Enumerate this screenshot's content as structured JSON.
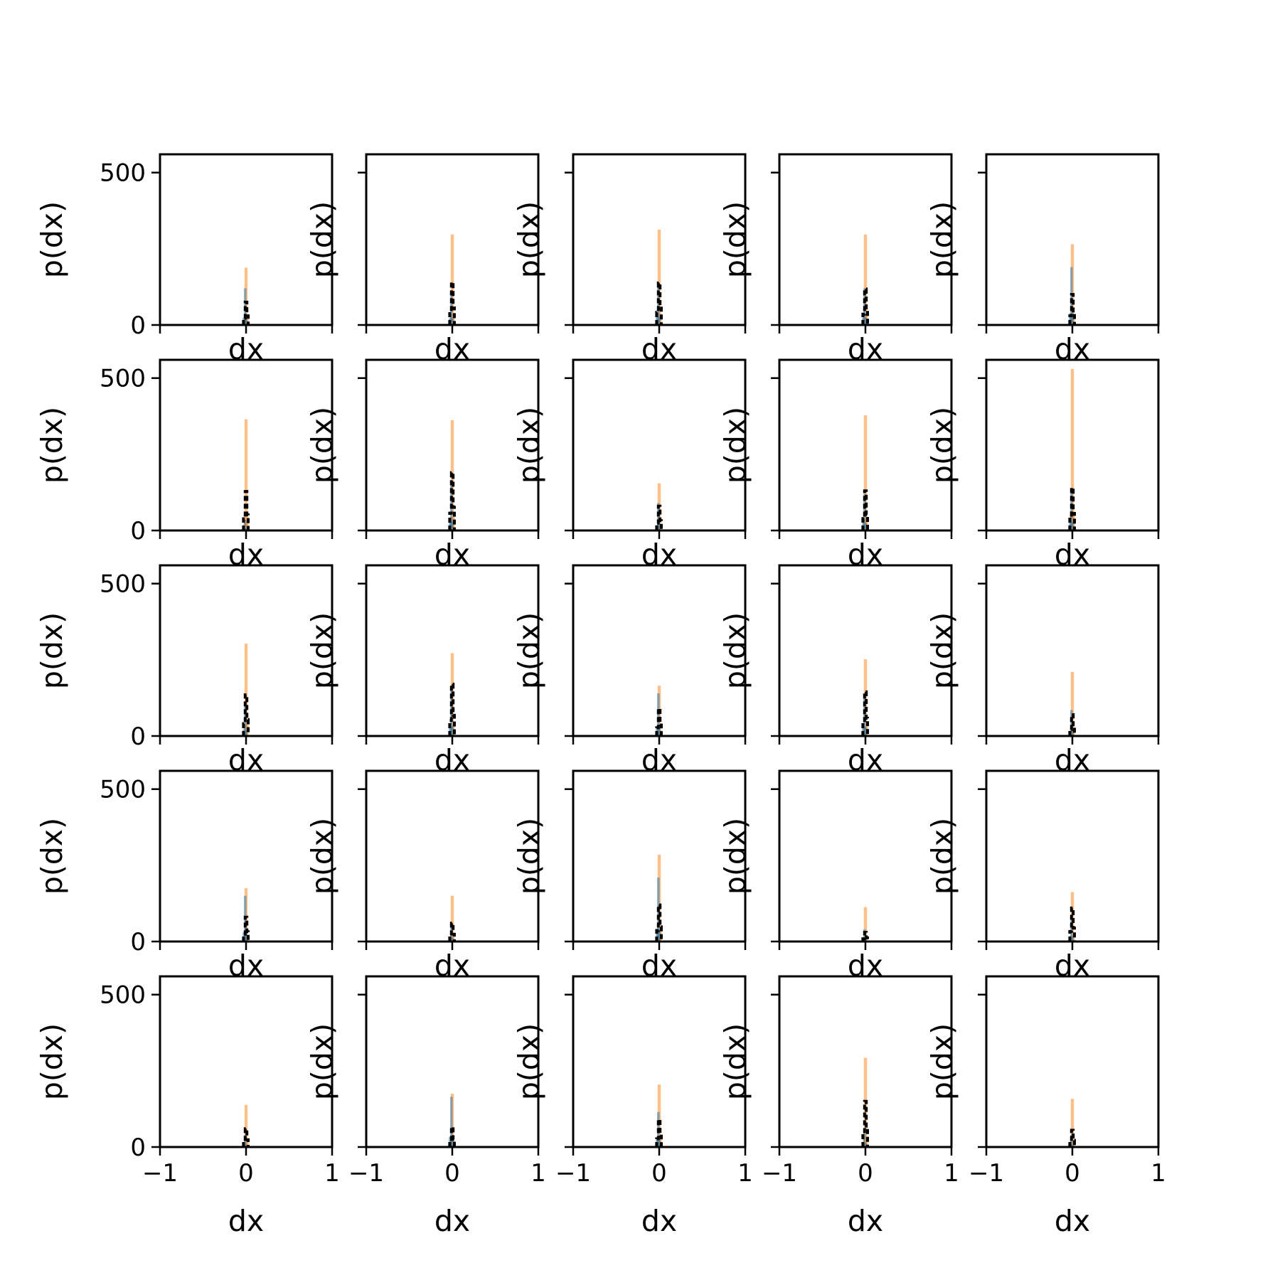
{
  "chart_data": {
    "type": "histogram-grid",
    "rows": 5,
    "cols": 5,
    "xlabel": "dx",
    "ylabel": "p(dx)",
    "xlim": [
      -1,
      1
    ],
    "ylim": [
      0,
      560
    ],
    "xticks": [
      -1,
      0,
      1
    ],
    "xtick_labels": [
      "−1",
      "0",
      "1"
    ],
    "yticks": [
      0,
      500
    ],
    "ytick_labels": [
      "0",
      "500"
    ],
    "colors": {
      "series_a": "#1f77b4",
      "series_b": "#ff7f0e",
      "overlay": "#000000",
      "frame": "#000000",
      "background": "#ffffff"
    },
    "panels": [
      {
        "row": 0,
        "col": 0,
        "peak_orange": 188,
        "peak_blue": 120,
        "peak_black": 75,
        "center": 0.0
      },
      {
        "row": 0,
        "col": 1,
        "peak_orange": 297,
        "peak_blue": 110,
        "peak_black": 140,
        "center": 0.0
      },
      {
        "row": 0,
        "col": 2,
        "peak_orange": 313,
        "peak_blue": 140,
        "peak_black": 138,
        "center": 0.0
      },
      {
        "row": 0,
        "col": 3,
        "peak_orange": 297,
        "peak_blue": 120,
        "peak_black": 118,
        "center": 0.0
      },
      {
        "row": 0,
        "col": 4,
        "peak_orange": 265,
        "peak_blue": 190,
        "peak_black": 100,
        "center": 0.0
      },
      {
        "row": 1,
        "col": 0,
        "peak_orange": 365,
        "peak_blue": 35,
        "peak_black": 128,
        "center": 0.0
      },
      {
        "row": 1,
        "col": 1,
        "peak_orange": 362,
        "peak_blue": 150,
        "peak_black": 190,
        "center": 0.0
      },
      {
        "row": 1,
        "col": 2,
        "peak_orange": 155,
        "peak_blue": 90,
        "peak_black": 80,
        "center": 0.0
      },
      {
        "row": 1,
        "col": 3,
        "peak_orange": 378,
        "peak_blue": 120,
        "peak_black": 130,
        "center": 0.0
      },
      {
        "row": 1,
        "col": 4,
        "peak_orange": 530,
        "peak_blue": 140,
        "peak_black": 140,
        "center": 0.0
      },
      {
        "row": 2,
        "col": 0,
        "peak_orange": 303,
        "peak_blue": 100,
        "peak_black": 135,
        "center": 0.0
      },
      {
        "row": 2,
        "col": 1,
        "peak_orange": 272,
        "peak_blue": 160,
        "peak_black": 170,
        "center": 0.0
      },
      {
        "row": 2,
        "col": 2,
        "peak_orange": 165,
        "peak_blue": 140,
        "peak_black": 90,
        "center": 0.0
      },
      {
        "row": 2,
        "col": 3,
        "peak_orange": 252,
        "peak_blue": 140,
        "peak_black": 145,
        "center": 0.0
      },
      {
        "row": 2,
        "col": 4,
        "peak_orange": 210,
        "peak_blue": 85,
        "peak_black": 70,
        "center": 0.0
      },
      {
        "row": 3,
        "col": 0,
        "peak_orange": 175,
        "peak_blue": 150,
        "peak_black": 80,
        "center": 0.0
      },
      {
        "row": 3,
        "col": 1,
        "peak_orange": 150,
        "peak_blue": 60,
        "peak_black": 60,
        "center": 0.0
      },
      {
        "row": 3,
        "col": 2,
        "peak_orange": 285,
        "peak_blue": 210,
        "peak_black": 120,
        "center": 0.0
      },
      {
        "row": 3,
        "col": 3,
        "peak_orange": 113,
        "peak_blue": 40,
        "peak_black": 30,
        "center": 0.0
      },
      {
        "row": 3,
        "col": 4,
        "peak_orange": 162,
        "peak_blue": 85,
        "peak_black": 110,
        "center": 0.0
      },
      {
        "row": 4,
        "col": 0,
        "peak_orange": 138,
        "peak_blue": 40,
        "peak_black": 60,
        "center": 0.0
      },
      {
        "row": 4,
        "col": 1,
        "peak_orange": 175,
        "peak_blue": 165,
        "peak_black": 65,
        "center": 0.0
      },
      {
        "row": 4,
        "col": 2,
        "peak_orange": 205,
        "peak_blue": 115,
        "peak_black": 90,
        "center": 0.0
      },
      {
        "row": 4,
        "col": 3,
        "peak_orange": 293,
        "peak_blue": 60,
        "peak_black": 150,
        "center": 0.0
      },
      {
        "row": 4,
        "col": 4,
        "peak_orange": 158,
        "peak_blue": 40,
        "peak_black": 55,
        "center": 0.0
      }
    ]
  }
}
